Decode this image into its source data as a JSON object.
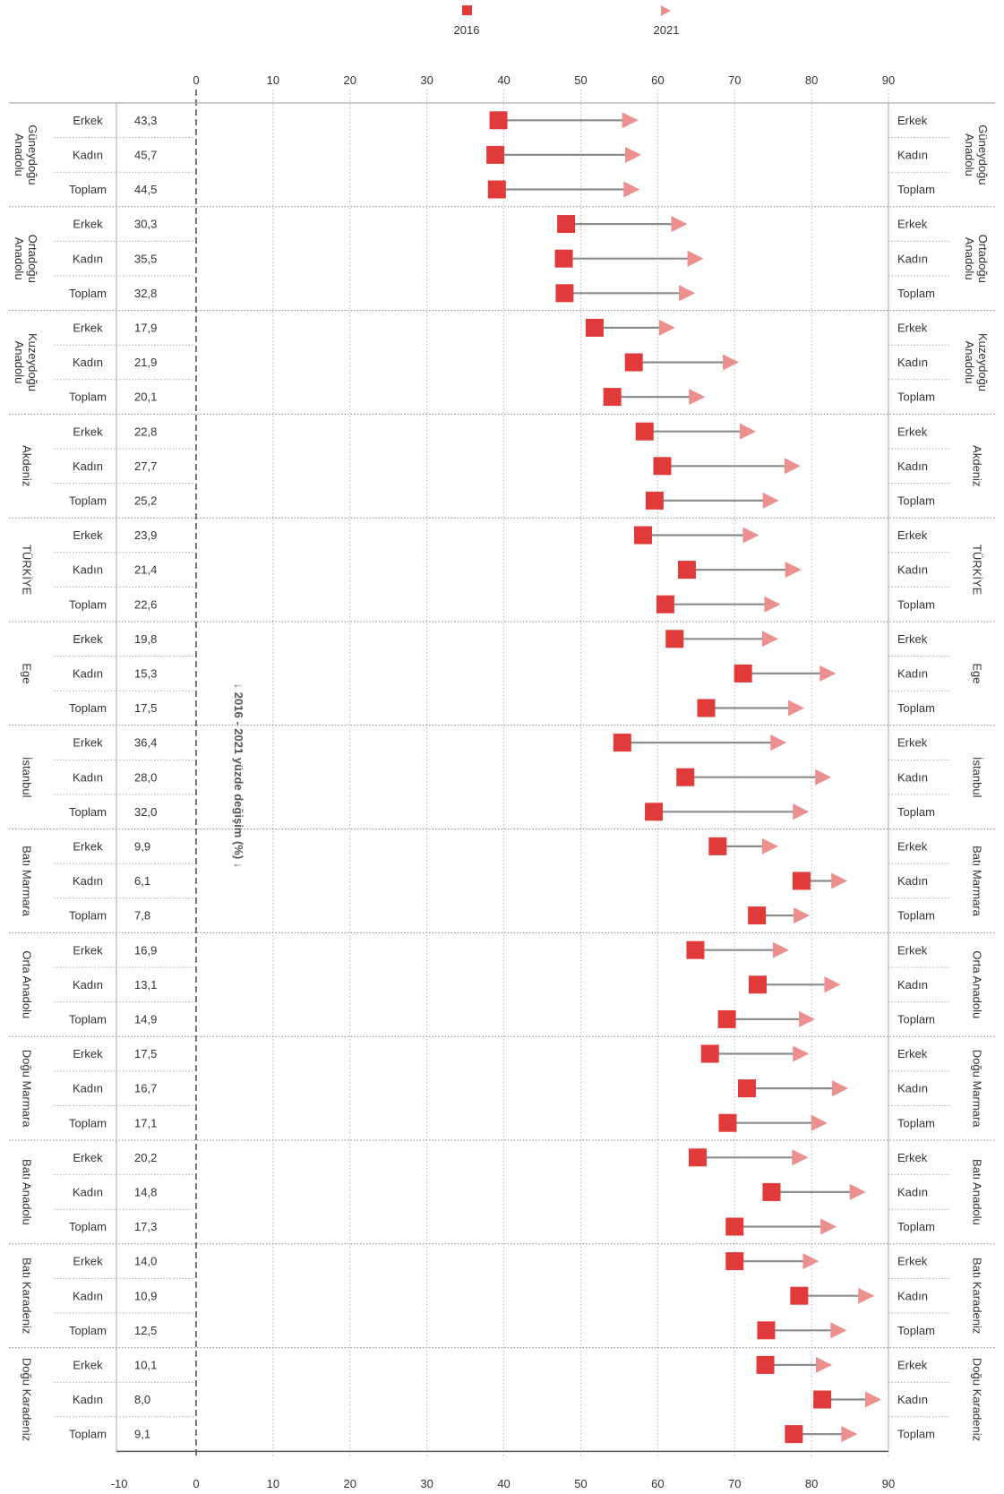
{
  "legend": {
    "label_2016": "2016",
    "label_2021": "2021"
  },
  "annotation": "↓ 2016 - 2021 yüzde değişim (%) ↓",
  "colors": {
    "marker_2016": "#e03a3a",
    "marker_2021": "#ec8f8f",
    "connector": "#8c8c8c",
    "grid": "#b5b5b5",
    "text": "#333333"
  },
  "chart_data": {
    "type": "dumbbell",
    "x_ticks_top": [
      "0",
      "10",
      "20",
      "30",
      "40",
      "50",
      "60",
      "70",
      "80",
      "90"
    ],
    "x_ticks_bottom": [
      "-10",
      "0",
      "10",
      "20",
      "30",
      "40",
      "50",
      "60",
      "70",
      "80",
      "90"
    ],
    "xlim": [
      -10,
      90
    ],
    "grid": true,
    "legend_position": "top",
    "series": [
      {
        "name": "2016",
        "marker": "square"
      },
      {
        "name": "2021",
        "marker": "arrow"
      }
    ],
    "groups": [
      {
        "name": "Güneydoğu Anadolu",
        "rows": [
          {
            "label": "Erkek",
            "change": "43,3",
            "v2016": 39.3,
            "v2021": 56.3
          },
          {
            "label": "Kadın",
            "change": "45,7",
            "v2016": 38.9,
            "v2021": 56.7
          },
          {
            "label": "Toplam",
            "change": "44,5",
            "v2016": 39.1,
            "v2021": 56.5
          }
        ]
      },
      {
        "name": "Ortadoğu Anadolu",
        "rows": [
          {
            "label": "Erkek",
            "change": "30,3",
            "v2016": 48.1,
            "v2021": 62.7
          },
          {
            "label": "Kadın",
            "change": "35,5",
            "v2016": 47.8,
            "v2021": 64.8
          },
          {
            "label": "Toplam",
            "change": "32,8",
            "v2016": 47.9,
            "v2021": 63.7
          }
        ]
      },
      {
        "name": "Kuzeydoğu Anadolu",
        "rows": [
          {
            "label": "Erkek",
            "change": "17,9",
            "v2016": 51.8,
            "v2021": 61.1
          },
          {
            "label": "Kadın",
            "change": "21,9",
            "v2016": 56.9,
            "v2021": 69.4
          },
          {
            "label": "Toplam",
            "change": "20,1",
            "v2016": 54.1,
            "v2021": 65.0
          }
        ]
      },
      {
        "name": "Akdeniz",
        "rows": [
          {
            "label": "Erkek",
            "change": "22,8",
            "v2016": 58.3,
            "v2021": 71.6
          },
          {
            "label": "Kadın",
            "change": "27,7",
            "v2016": 60.6,
            "v2021": 77.4
          },
          {
            "label": "Toplam",
            "change": "25,2",
            "v2016": 59.6,
            "v2021": 74.6
          }
        ]
      },
      {
        "name": "TÜRKİYE",
        "rows": [
          {
            "label": "Erkek",
            "change": "23,9",
            "v2016": 58.1,
            "v2021": 72.0
          },
          {
            "label": "Kadın",
            "change": "21,4",
            "v2016": 63.8,
            "v2021": 77.5
          },
          {
            "label": "Toplam",
            "change": "22,6",
            "v2016": 61.0,
            "v2021": 74.8
          }
        ]
      },
      {
        "name": "Ege",
        "rows": [
          {
            "label": "Erkek",
            "change": "19,8",
            "v2016": 62.2,
            "v2021": 74.5
          },
          {
            "label": "Kadın",
            "change": "15,3",
            "v2016": 71.1,
            "v2021": 82.0
          },
          {
            "label": "Toplam",
            "change": "17,5",
            "v2016": 66.3,
            "v2021": 77.9
          }
        ]
      },
      {
        "name": "İstanbul",
        "rows": [
          {
            "label": "Erkek",
            "change": "36,4",
            "v2016": 55.4,
            "v2021": 75.6
          },
          {
            "label": "Kadın",
            "change": "28,0",
            "v2016": 63.6,
            "v2021": 81.4
          },
          {
            "label": "Toplam",
            "change": "32,0",
            "v2016": 59.5,
            "v2021": 78.5
          }
        ]
      },
      {
        "name": "Batı Marmara",
        "rows": [
          {
            "label": "Erkek",
            "change": "9,9",
            "v2016": 67.8,
            "v2021": 74.5
          },
          {
            "label": "Kadın",
            "change": "6,1",
            "v2016": 78.7,
            "v2021": 83.5
          },
          {
            "label": "Toplam",
            "change": "7,8",
            "v2016": 72.9,
            "v2021": 78.6
          }
        ]
      },
      {
        "name": "Orta Anadolu",
        "rows": [
          {
            "label": "Erkek",
            "change": "16,9",
            "v2016": 64.9,
            "v2021": 75.9
          },
          {
            "label": "Kadın",
            "change": "13,1",
            "v2016": 73.0,
            "v2021": 82.6
          },
          {
            "label": "Toplam",
            "change": "14,9",
            "v2016": 69.0,
            "v2021": 79.3
          }
        ]
      },
      {
        "name": "Doğu Marmara",
        "rows": [
          {
            "label": "Erkek",
            "change": "17,5",
            "v2016": 66.8,
            "v2021": 78.5
          },
          {
            "label": "Kadın",
            "change": "16,7",
            "v2016": 71.6,
            "v2021": 83.6
          },
          {
            "label": "Toplam",
            "change": "17,1",
            "v2016": 69.1,
            "v2021": 80.9
          }
        ]
      },
      {
        "name": "Batı Anadolu",
        "rows": [
          {
            "label": "Erkek",
            "change": "20,2",
            "v2016": 65.2,
            "v2021": 78.4
          },
          {
            "label": "Kadın",
            "change": "14,8",
            "v2016": 74.8,
            "v2021": 85.9
          },
          {
            "label": "Toplam",
            "change": "17,3",
            "v2016": 70.0,
            "v2021": 82.1
          }
        ]
      },
      {
        "name": "Batı Karadeniz",
        "rows": [
          {
            "label": "Erkek",
            "change": "14,0",
            "v2016": 70.0,
            "v2021": 79.8
          },
          {
            "label": "Kadın",
            "change": "10,9",
            "v2016": 78.4,
            "v2021": 87.0
          },
          {
            "label": "Toplam",
            "change": "12,5",
            "v2016": 74.1,
            "v2021": 83.4
          }
        ]
      },
      {
        "name": "Doğu Karadeniz",
        "rows": [
          {
            "label": "Erkek",
            "change": "10,1",
            "v2016": 74.0,
            "v2021": 81.5
          },
          {
            "label": "Kadın",
            "change": "8,0",
            "v2016": 81.4,
            "v2021": 87.9
          },
          {
            "label": "Toplam",
            "change": "9,1",
            "v2016": 77.7,
            "v2021": 84.8
          }
        ]
      }
    ]
  }
}
